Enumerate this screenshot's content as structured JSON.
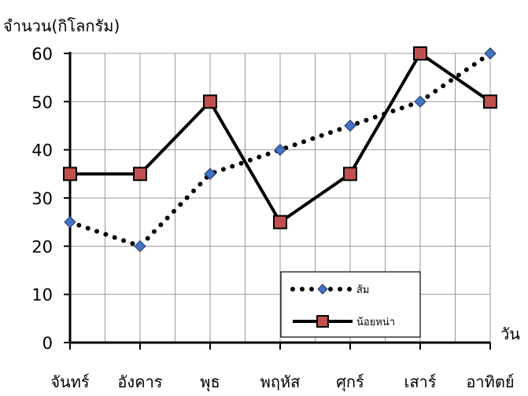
{
  "chart_data": {
    "type": "line",
    "ylabel": "จำนวน(กิโลกรัม)",
    "xlabel": "วัน",
    "categories": [
      "จันทร์",
      "อังคาร",
      "พุธ",
      "พฤหัส",
      "ศุกร์",
      "เสาร์",
      "อาทิตย์"
    ],
    "ylim": [
      0,
      60
    ],
    "yticks": [
      0,
      10,
      20,
      30,
      40,
      50,
      60
    ],
    "grid": true,
    "legend_position": "bottom-right",
    "series": [
      {
        "name": "ส้ม",
        "values": [
          25,
          20,
          35,
          40,
          45,
          50,
          60
        ],
        "line_style": "dotted",
        "marker": "diamond",
        "color": "#000000",
        "marker_color": "#4472c4"
      },
      {
        "name": "น้อยหน่า",
        "values": [
          35,
          35,
          50,
          25,
          35,
          60,
          50
        ],
        "line_style": "solid",
        "marker": "square",
        "color": "#000000",
        "marker_color": "#c0504d"
      }
    ]
  }
}
